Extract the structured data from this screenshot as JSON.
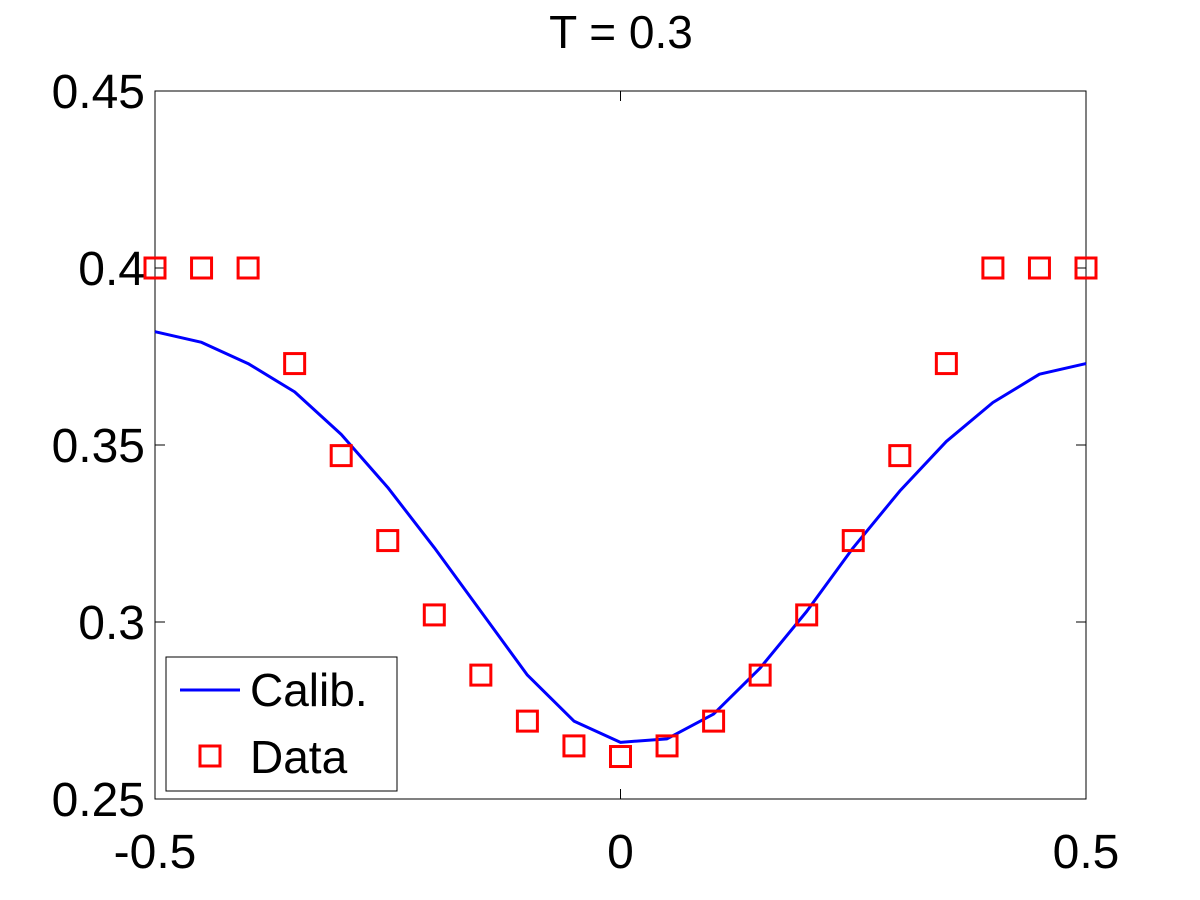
{
  "chart_data": {
    "type": "line",
    "title": "T = 0.3",
    "xlabel": "",
    "ylabel": "",
    "xlim": [
      -0.5,
      0.5
    ],
    "ylim": [
      0.25,
      0.45
    ],
    "xticks": [
      -0.5,
      0,
      0.5
    ],
    "xtick_labels": [
      "-0.5",
      "0",
      "0.5"
    ],
    "yticks": [
      0.25,
      0.3,
      0.35,
      0.4,
      0.45
    ],
    "ytick_labels": [
      "0.25",
      "0.3",
      "0.35",
      "0.4",
      "0.45"
    ],
    "grid": false,
    "legend_position": "bottom-left",
    "series": [
      {
        "name": "Calib.",
        "kind": "line",
        "color": "#0000ff",
        "x": [
          -0.5,
          -0.45,
          -0.4,
          -0.35,
          -0.3,
          -0.25,
          -0.2,
          -0.15,
          -0.1,
          -0.05,
          0,
          0.05,
          0.1,
          0.15,
          0.2,
          0.25,
          0.3,
          0.35,
          0.4,
          0.45,
          0.5
        ],
        "y": [
          0.382,
          0.379,
          0.373,
          0.365,
          0.353,
          0.338,
          0.321,
          0.303,
          0.285,
          0.272,
          0.266,
          0.267,
          0.274,
          0.287,
          0.303,
          0.321,
          0.337,
          0.351,
          0.362,
          0.37,
          0.373
        ]
      },
      {
        "name": "Data",
        "kind": "marker",
        "marker": "square",
        "color": "#ff0000",
        "x": [
          -0.5,
          -0.45,
          -0.4,
          -0.35,
          -0.3,
          -0.25,
          -0.2,
          -0.15,
          -0.1,
          -0.05,
          0,
          0.05,
          0.1,
          0.15,
          0.2,
          0.25,
          0.3,
          0.35,
          0.4,
          0.45,
          0.5
        ],
        "y": [
          0.4,
          0.4,
          0.4,
          0.373,
          0.347,
          0.323,
          0.302,
          0.285,
          0.272,
          0.265,
          0.262,
          0.265,
          0.272,
          0.285,
          0.302,
          0.323,
          0.347,
          0.373,
          0.4,
          0.4,
          0.4
        ]
      }
    ]
  }
}
